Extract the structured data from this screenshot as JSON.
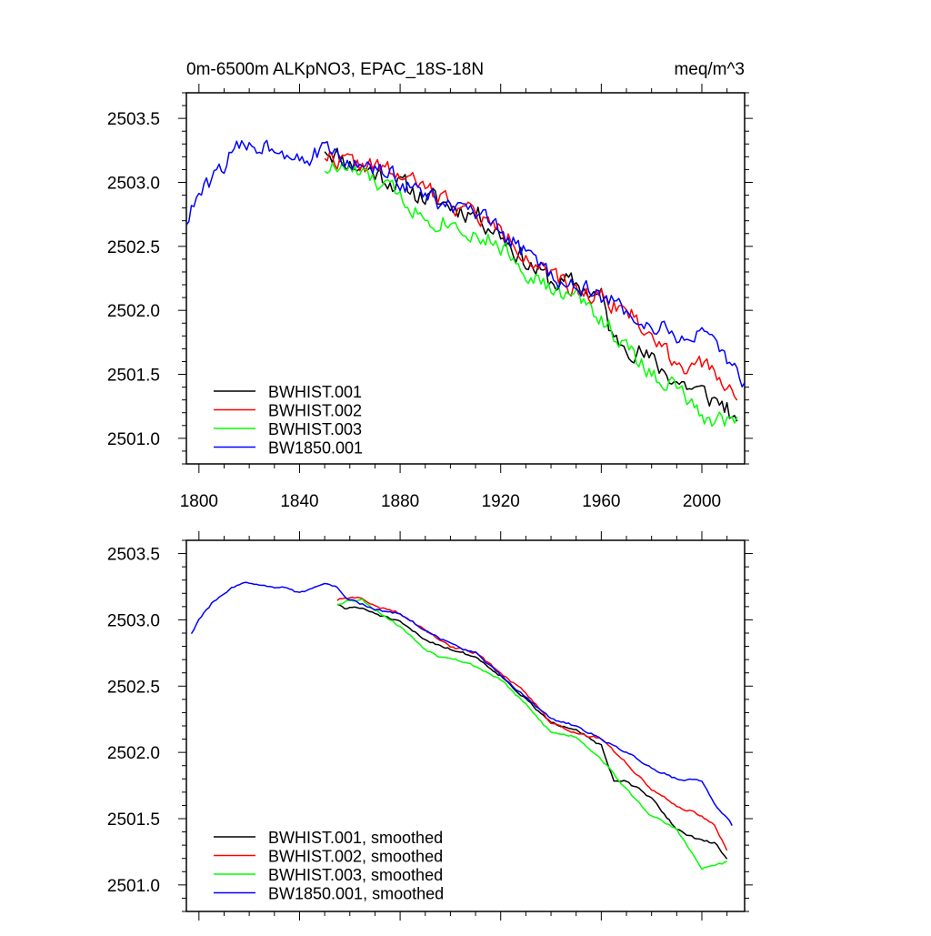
{
  "chart_data": [
    {
      "type": "line",
      "title_left": "0m-6500m ALKpNO3, EPAC_18S-18N",
      "title_right": "meq/m^3",
      "xlabel": "",
      "ylabel": "",
      "xlim": [
        1795,
        2017
      ],
      "ylim": [
        2500.8,
        2503.7
      ],
      "xticks": [
        1800,
        1840,
        1880,
        1920,
        1960,
        2000
      ],
      "yticks": [
        2501.0,
        2501.5,
        2502.0,
        2502.5,
        2503.0,
        2503.5
      ],
      "ytick_labels": [
        "2501.0",
        "2501.5",
        "2502.0",
        "2502.5",
        "2503.0",
        "2503.5"
      ],
      "show_xtick_labels": true,
      "legend_position": "bottom-left",
      "series": [
        {
          "name": "BWHIST.001",
          "color": "#000000",
          "anchors": [
            [
              1850,
              3.28
            ],
            [
              1860,
              3.15
            ],
            [
              1870,
              3.08
            ],
            [
              1880,
              2.98
            ],
            [
              1890,
              2.88
            ],
            [
              1900,
              2.82
            ],
            [
              1910,
              2.76
            ],
            [
              1920,
              2.6
            ],
            [
              1930,
              2.38
            ],
            [
              1940,
              2.22
            ],
            [
              1950,
              2.2
            ],
            [
              1960,
              2.1
            ],
            [
              1965,
              1.75
            ],
            [
              1970,
              1.75
            ],
            [
              1980,
              1.6
            ],
            [
              1990,
              1.45
            ],
            [
              2000,
              1.35
            ],
            [
              2010,
              1.25
            ],
            [
              2014,
              1.05
            ]
          ],
          "noise": 0.14,
          "seed": 11
        },
        {
          "name": "BWHIST.002",
          "color": "#ff0000",
          "anchors": [
            [
              1850,
              3.22
            ],
            [
              1860,
              3.15
            ],
            [
              1870,
              3.12
            ],
            [
              1880,
              3.05
            ],
            [
              1890,
              2.95
            ],
            [
              1900,
              2.85
            ],
            [
              1910,
              2.75
            ],
            [
              1920,
              2.62
            ],
            [
              1930,
              2.45
            ],
            [
              1940,
              2.25
            ],
            [
              1950,
              2.15
            ],
            [
              1960,
              2.12
            ],
            [
              1970,
              2.0
            ],
            [
              1980,
              1.8
            ],
            [
              1990,
              1.6
            ],
            [
              2000,
              1.55
            ],
            [
              2010,
              1.45
            ],
            [
              2014,
              1.25
            ]
          ],
          "noise": 0.12,
          "seed": 22
        },
        {
          "name": "BWHIST.003",
          "color": "#00ff00",
          "anchors": [
            [
              1850,
              3.12
            ],
            [
              1860,
              3.1
            ],
            [
              1870,
              3.0
            ],
            [
              1880,
              2.9
            ],
            [
              1890,
              2.72
            ],
            [
              1900,
              2.7
            ],
            [
              1910,
              2.6
            ],
            [
              1920,
              2.5
            ],
            [
              1930,
              2.32
            ],
            [
              1940,
              2.15
            ],
            [
              1950,
              2.1
            ],
            [
              1960,
              1.95
            ],
            [
              1970,
              1.7
            ],
            [
              1980,
              1.5
            ],
            [
              1990,
              1.4
            ],
            [
              2000,
              1.15
            ],
            [
              2010,
              1.15
            ],
            [
              2014,
              1.15
            ]
          ],
          "noise": 0.12,
          "seed": 33
        },
        {
          "name": "BW1850.001",
          "color": "#0000ff",
          "anchors": [
            [
              1795,
              2.7
            ],
            [
              1800,
              2.9
            ],
            [
              1805,
              3.0
            ],
            [
              1810,
              3.15
            ],
            [
              1815,
              3.25
            ],
            [
              1820,
              3.3
            ],
            [
              1830,
              3.28
            ],
            [
              1840,
              3.22
            ],
            [
              1845,
              3.2
            ],
            [
              1850,
              3.25
            ],
            [
              1855,
              3.2
            ],
            [
              1860,
              3.15
            ],
            [
              1870,
              3.1
            ],
            [
              1880,
              3.02
            ],
            [
              1890,
              2.9
            ],
            [
              1900,
              2.8
            ],
            [
              1910,
              2.75
            ],
            [
              1920,
              2.6
            ],
            [
              1930,
              2.45
            ],
            [
              1940,
              2.28
            ],
            [
              1950,
              2.2
            ],
            [
              1960,
              2.1
            ],
            [
              1970,
              2.0
            ],
            [
              1980,
              1.88
            ],
            [
              1990,
              1.8
            ],
            [
              2000,
              1.8
            ],
            [
              2010,
              1.6
            ],
            [
              2017,
              1.45
            ]
          ],
          "noise": 0.12,
          "seed": 44
        }
      ]
    },
    {
      "type": "line",
      "title_left": "",
      "title_right": "",
      "xlabel": "",
      "ylabel": "",
      "xlim": [
        1795,
        2017
      ],
      "ylim": [
        2500.8,
        2503.6
      ],
      "xticks": [
        1800,
        1840,
        1880,
        1920,
        1960,
        2000
      ],
      "yticks": [
        2501.0,
        2501.5,
        2502.0,
        2502.5,
        2503.0,
        2503.5
      ],
      "ytick_labels": [
        "2501.0",
        "2501.5",
        "2502.0",
        "2502.5",
        "2503.0",
        "2503.5"
      ],
      "show_xtick_labels": false,
      "legend_position": "bottom-left",
      "series": [
        {
          "name": "BWHIST.001, smoothed",
          "color": "#000000",
          "anchors": [
            [
              1855,
              3.12
            ],
            [
              1858,
              3.08
            ],
            [
              1862,
              3.1
            ],
            [
              1870,
              3.05
            ],
            [
              1880,
              2.98
            ],
            [
              1890,
              2.85
            ],
            [
              1900,
              2.78
            ],
            [
              1910,
              2.72
            ],
            [
              1920,
              2.58
            ],
            [
              1930,
              2.4
            ],
            [
              1940,
              2.22
            ],
            [
              1950,
              2.18
            ],
            [
              1960,
              2.05
            ],
            [
              1965,
              1.78
            ],
            [
              1970,
              1.78
            ],
            [
              1975,
              1.72
            ],
            [
              1980,
              1.65
            ],
            [
              1990,
              1.42
            ],
            [
              2000,
              1.33
            ],
            [
              2005,
              1.32
            ],
            [
              2010,
              1.2
            ]
          ],
          "noise": 0.015,
          "seed": 51
        },
        {
          "name": "BWHIST.002, smoothed",
          "color": "#ff0000",
          "anchors": [
            [
              1855,
              3.15
            ],
            [
              1860,
              3.17
            ],
            [
              1865,
              3.16
            ],
            [
              1870,
              3.1
            ],
            [
              1880,
              3.05
            ],
            [
              1890,
              2.92
            ],
            [
              1900,
              2.8
            ],
            [
              1910,
              2.75
            ],
            [
              1920,
              2.6
            ],
            [
              1930,
              2.45
            ],
            [
              1940,
              2.22
            ],
            [
              1950,
              2.15
            ],
            [
              1960,
              2.1
            ],
            [
              1970,
              1.92
            ],
            [
              1980,
              1.72
            ],
            [
              1990,
              1.6
            ],
            [
              2000,
              1.52
            ],
            [
              2005,
              1.45
            ],
            [
              2010,
              1.27
            ]
          ],
          "noise": 0.015,
          "seed": 52
        },
        {
          "name": "BWHIST.003, smoothed",
          "color": "#00ff00",
          "anchors": [
            [
              1855,
              3.12
            ],
            [
              1860,
              3.15
            ],
            [
              1865,
              3.15
            ],
            [
              1870,
              3.08
            ],
            [
              1880,
              2.95
            ],
            [
              1890,
              2.78
            ],
            [
              1895,
              2.73
            ],
            [
              1900,
              2.72
            ],
            [
              1910,
              2.65
            ],
            [
              1920,
              2.55
            ],
            [
              1930,
              2.36
            ],
            [
              1940,
              2.15
            ],
            [
              1950,
              2.12
            ],
            [
              1960,
              1.95
            ],
            [
              1970,
              1.72
            ],
            [
              1980,
              1.52
            ],
            [
              1990,
              1.42
            ],
            [
              2000,
              1.12
            ],
            [
              2005,
              1.15
            ],
            [
              2010,
              1.17
            ]
          ],
          "noise": 0.015,
          "seed": 53
        },
        {
          "name": "BW1850.001, smoothed",
          "color": "#0000ff",
          "anchors": [
            [
              1797,
              2.9
            ],
            [
              1800,
              3.0
            ],
            [
              1805,
              3.12
            ],
            [
              1810,
              3.2
            ],
            [
              1815,
              3.26
            ],
            [
              1820,
              3.28
            ],
            [
              1825,
              3.27
            ],
            [
              1830,
              3.25
            ],
            [
              1835,
              3.24
            ],
            [
              1840,
              3.2
            ],
            [
              1845,
              3.24
            ],
            [
              1850,
              3.27
            ],
            [
              1855,
              3.24
            ],
            [
              1860,
              3.15
            ],
            [
              1870,
              3.08
            ],
            [
              1880,
              3.05
            ],
            [
              1890,
              2.92
            ],
            [
              1900,
              2.82
            ],
            [
              1910,
              2.75
            ],
            [
              1920,
              2.58
            ],
            [
              1930,
              2.42
            ],
            [
              1940,
              2.25
            ],
            [
              1950,
              2.2
            ],
            [
              1960,
              2.1
            ],
            [
              1970,
              2.0
            ],
            [
              1980,
              1.88
            ],
            [
              1990,
              1.8
            ],
            [
              2000,
              1.78
            ],
            [
              2005,
              1.62
            ],
            [
              2012,
              1.45
            ]
          ],
          "noise": 0.015,
          "seed": 54
        }
      ]
    }
  ]
}
